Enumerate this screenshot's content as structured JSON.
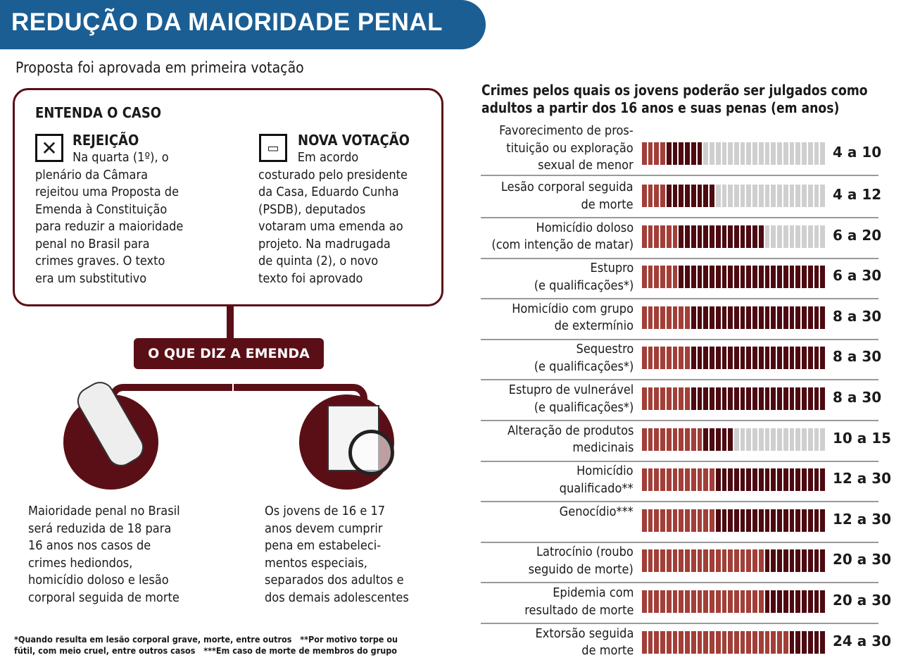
{
  "header": {
    "title": "REDUÇÃO DA MAIORIDADE PENAL",
    "subtitle": "Proposta foi aprovada em primeira votação"
  },
  "case": {
    "heading": "ENTENDA O CASO",
    "rejeicao": {
      "title": "REJEIÇÃO",
      "text": "Na quarta (1º), o\nplenário da Câmara\nrejeitou uma Proposta de\nEmenda à Constituição\npara reduzir a maioridade\npenal no Brasil para\ncrimes graves. O texto\nera um substitutivo"
    },
    "nova": {
      "title": "NOVA VOTAÇÃO",
      "text": "Em acordo\ncosturado pelo presidente\nda Casa, Eduardo Cunha\n(PSDB), deputados\nvotaram uma emenda ao\nprojeto. Na madrugada\nde quinta (2), o novo\ntexto foi aprovado"
    }
  },
  "emenda": {
    "label": "O QUE DIZ A EMENDA",
    "left": "Maioridade penal no Brasil\nserá reduzida de 18 para\n16 anos nos casos de\ncrimes hediondos,\nhomicídio doloso e lesão\ncorporal seguida de morte",
    "right": "Os jovens de 16 e 17\nanos devem cumprir\npena em estabeleci-\nmentos especiais,\nseparados dos adultos e\ndos demais adolescentes"
  },
  "footnote": "*Quando resulta em lesão corporal grave, morte, entre outros   **Por motivo torpe ou\nfútil, com meio cruel, entre outros casos   ***Em caso de morte de membros do grupo",
  "colors": {
    "banner": "#1b5e94",
    "min": "#a23f38",
    "range": "#4d0a10",
    "empty": "#cfcfcf"
  },
  "chart_data": {
    "type": "bar",
    "title": "Crimes pelos quais os jovens poderão ser julgados como\nadultos a partir dos 16 anos e suas penas (em anos)",
    "xlim": [
      0,
      30
    ],
    "categories": [
      "Favorecimento de pros-\ntituição ou exploração\nsexual de menor",
      "Lesão corporal seguida\nde morte",
      "Homicídio doloso\n(com intenção de matar)",
      "Estupro\n(e qualificações*)",
      "Homicídio com grupo\nde extermínio",
      "Sequestro\n(e qualificações*)",
      "Estupro de vulnerável\n(e qualificações*)",
      "Alteração de produtos\nmedicinais",
      "Homicídio\nqualificado**",
      "Genocídio***",
      "Latrocínio (roubo\nseguido de morte)",
      "Epidemia com\nresultado de morte",
      "Extorsão seguida\nde morte"
    ],
    "min": [
      4,
      4,
      6,
      6,
      8,
      8,
      8,
      10,
      12,
      12,
      20,
      20,
      24
    ],
    "max": [
      10,
      12,
      20,
      30,
      30,
      30,
      30,
      15,
      30,
      30,
      30,
      30,
      30
    ],
    "labels": [
      "4 a 10",
      "4 a 12",
      "6 a 20",
      "6 a 30",
      "8 a 30",
      "8 a 30",
      "8 a 30",
      "10 a 15",
      "12 a 30",
      "12 a 30",
      "20 a 30",
      "20 a 30",
      "24 a 30"
    ]
  }
}
